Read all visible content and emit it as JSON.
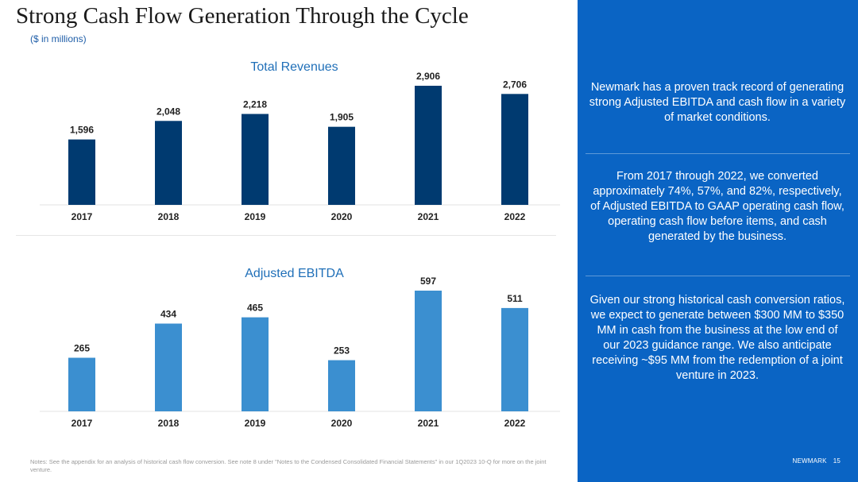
{
  "title": "Strong Cash Flow Generation Through the Cycle",
  "subtitle": "($ in millions)",
  "chart_data": [
    {
      "type": "bar",
      "title": "Total Revenues",
      "categories": [
        "2017",
        "2018",
        "2019",
        "2020",
        "2021",
        "2022"
      ],
      "values": [
        1596,
        2048,
        2218,
        1905,
        2906,
        2706
      ],
      "value_labels": [
        "1,596",
        "2,048",
        "2,218",
        "1,905",
        "2,906",
        "2,706"
      ],
      "color": "#003a70",
      "grid": false,
      "legend": "none"
    },
    {
      "type": "bar",
      "title": "Adjusted EBITDA",
      "categories": [
        "2017",
        "2018",
        "2019",
        "2020",
        "2021",
        "2022"
      ],
      "values": [
        265,
        434,
        465,
        253,
        597,
        511
      ],
      "value_labels": [
        "265",
        "434",
        "465",
        "253",
        "597",
        "511"
      ],
      "color": "#3b8fd0",
      "grid": false,
      "legend": "none"
    }
  ],
  "notes": "Notes: See the appendix for an analysis of historical cash flow conversion. See note 8 under \"Notes to the Condensed Consolidated Financial Statements\" in our 1Q2023 10-Q for more on the joint venture.",
  "sidebar": {
    "paragraphs": [
      "Newmark has a proven track record of generating strong Adjusted EBITDA and cash flow in a variety of market conditions.",
      "From 2017 through 2022, we converted approximately 74%, 57%, and 82%, respectively, of Adjusted EBITDA to GAAP operating cash flow, operating cash flow before items, and cash generated by the business.",
      "Given our strong historical cash conversion ratios, we expect to generate between $300 MM to $350 MM in cash from the business at the low end of our 2023 guidance range. We also anticipate receiving ~$95 MM from the redemption of a joint venture in 2023."
    ]
  },
  "footer": {
    "brand": "NEWMARK",
    "page_number": "15"
  },
  "colors": {
    "sidebar_bg": "#0a64c4",
    "revenue_bar": "#003a70",
    "ebitda_bar": "#3b8fd0"
  }
}
